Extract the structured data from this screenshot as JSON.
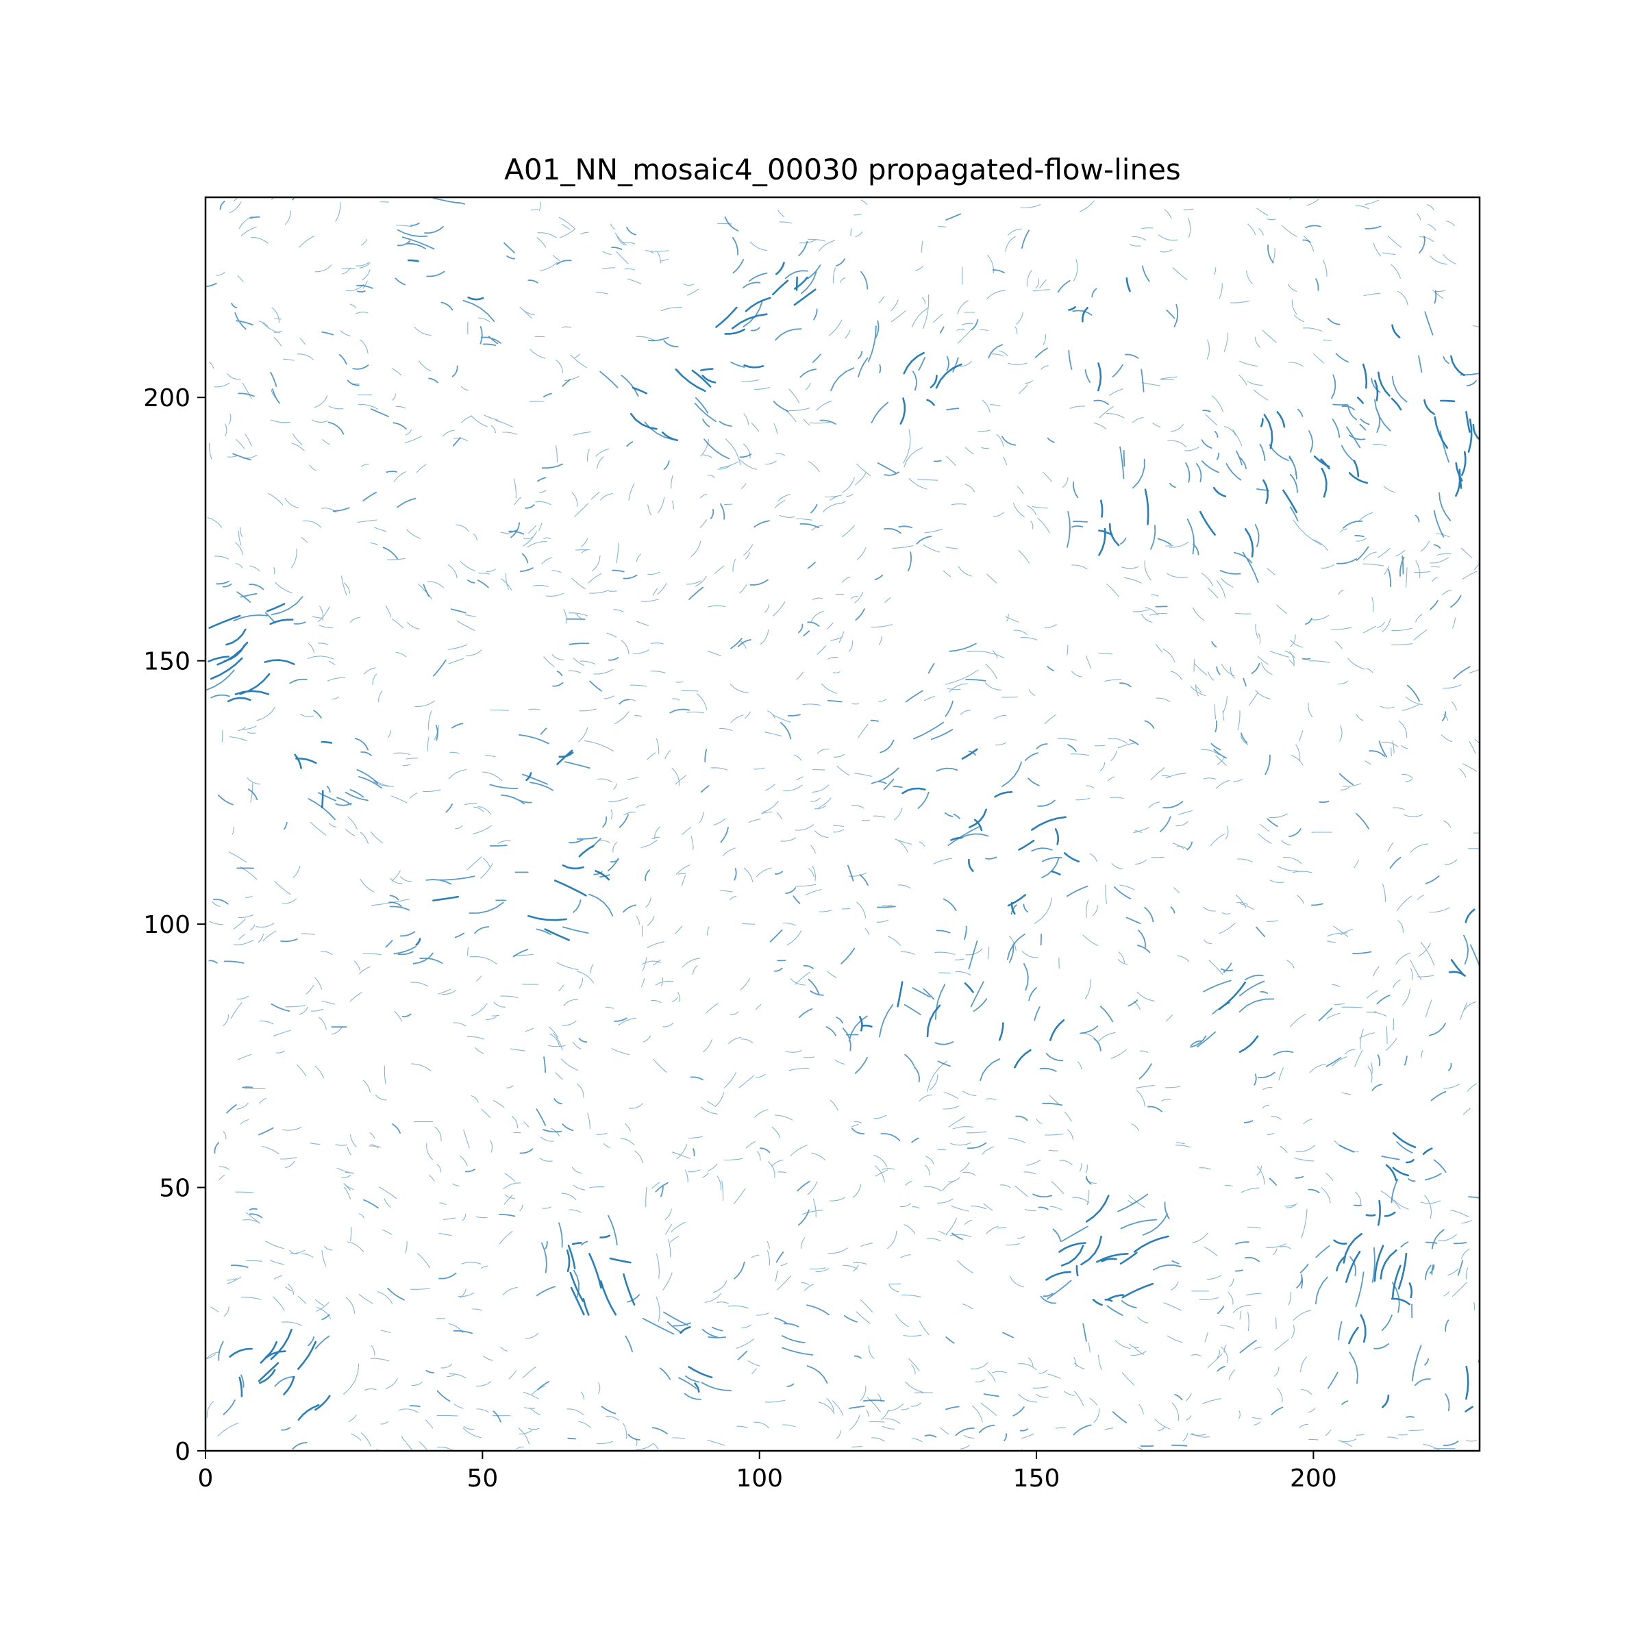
{
  "chart_data": {
    "type": "line",
    "title": "A01_NN_mosaic4_00030 propagated-flow-lines",
    "xlabel": "",
    "ylabel": "",
    "xlim": [
      0,
      230
    ],
    "ylim": [
      0,
      238
    ],
    "x_ticks": [
      0,
      50,
      100,
      150,
      200
    ],
    "y_ticks": [
      0,
      50,
      100,
      150,
      200
    ],
    "grid": false,
    "legend": "none",
    "line_color": "#1f77b4",
    "frame_color": "#000000",
    "dense_regions": [
      {
        "x": 5,
        "y": 152,
        "angle_deg": 20,
        "strength": 1.0
      },
      {
        "x": 12,
        "y": 12,
        "angle_deg": 45,
        "strength": 0.9
      },
      {
        "x": 45,
        "y": 227,
        "angle_deg": -20,
        "strength": 0.8
      },
      {
        "x": 100,
        "y": 215,
        "angle_deg": 40,
        "strength": 0.9
      },
      {
        "x": 83,
        "y": 200,
        "angle_deg": -45,
        "strength": 0.8
      },
      {
        "x": 125,
        "y": 200,
        "angle_deg": 70,
        "strength": 0.9
      },
      {
        "x": 165,
        "y": 215,
        "angle_deg": -80,
        "strength": 0.9
      },
      {
        "x": 215,
        "y": 205,
        "angle_deg": -75,
        "strength": 1.0
      },
      {
        "x": 225,
        "y": 190,
        "angle_deg": -80,
        "strength": 0.9
      },
      {
        "x": 198,
        "y": 190,
        "angle_deg": -60,
        "strength": 0.9
      },
      {
        "x": 185,
        "y": 180,
        "angle_deg": -60,
        "strength": 0.7
      },
      {
        "x": 140,
        "y": 122,
        "angle_deg": 30,
        "strength": 0.8
      },
      {
        "x": 147,
        "y": 113,
        "angle_deg": 30,
        "strength": 0.9
      },
      {
        "x": 130,
        "y": 130,
        "angle_deg": 25,
        "strength": 0.7
      },
      {
        "x": 145,
        "y": 82,
        "angle_deg": 70,
        "strength": 1.0
      },
      {
        "x": 125,
        "y": 80,
        "angle_deg": 80,
        "strength": 0.8
      },
      {
        "x": 65,
        "y": 105,
        "angle_deg": -20,
        "strength": 0.8
      },
      {
        "x": 40,
        "y": 100,
        "angle_deg": 5,
        "strength": 0.6
      },
      {
        "x": 70,
        "y": 35,
        "angle_deg": -70,
        "strength": 0.8
      },
      {
        "x": 85,
        "y": 15,
        "angle_deg": -35,
        "strength": 0.8
      },
      {
        "x": 110,
        "y": 20,
        "angle_deg": -20,
        "strength": 0.6
      },
      {
        "x": 160,
        "y": 35,
        "angle_deg": 30,
        "strength": 0.8
      },
      {
        "x": 210,
        "y": 35,
        "angle_deg": 80,
        "strength": 1.0
      },
      {
        "x": 210,
        "y": 15,
        "angle_deg": 80,
        "strength": 0.7
      },
      {
        "x": 230,
        "y": 15,
        "angle_deg": 85,
        "strength": 0.8
      },
      {
        "x": 185,
        "y": 80,
        "angle_deg": 35,
        "strength": 0.7
      },
      {
        "x": 230,
        "y": 95,
        "angle_deg": -60,
        "strength": 0.7
      },
      {
        "x": 215,
        "y": 60,
        "angle_deg": -40,
        "strength": 0.7
      },
      {
        "x": 165,
        "y": 180,
        "angle_deg": -85,
        "strength": 0.7
      },
      {
        "x": 60,
        "y": 128,
        "angle_deg": -15,
        "strength": 0.6
      },
      {
        "x": 130,
        "y": 155,
        "angle_deg": 10,
        "strength": 0.5
      },
      {
        "x": 20,
        "y": 130,
        "angle_deg": -25,
        "strength": 0.6
      }
    ]
  }
}
